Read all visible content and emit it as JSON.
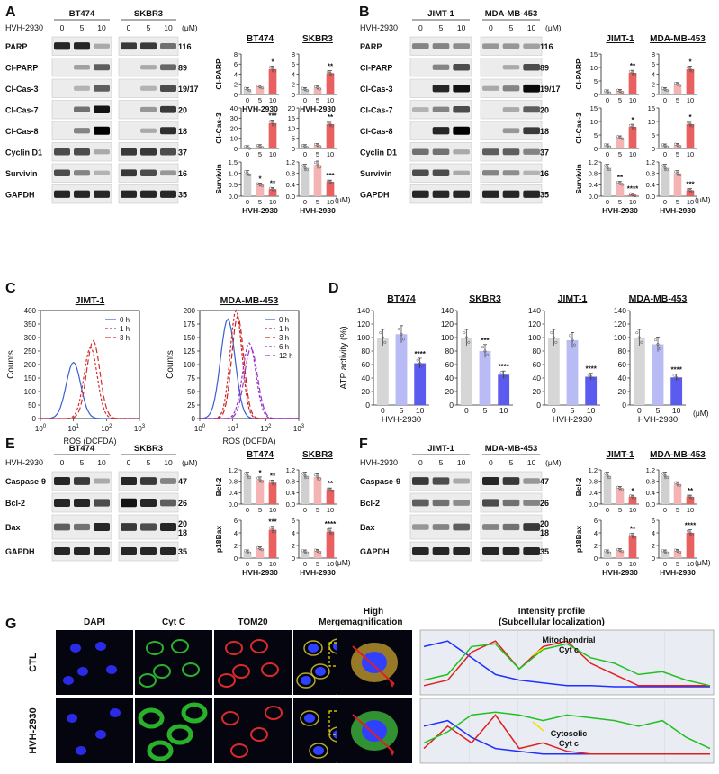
{
  "panel_letters": [
    "A",
    "B",
    "C",
    "D",
    "E",
    "F",
    "G"
  ],
  "treatment": "HVH-2930",
  "unit": "(μM)",
  "doses": [
    "0",
    "5",
    "10"
  ],
  "panelA": {
    "cells": [
      "BT474",
      "SKBR3"
    ],
    "proteins": [
      "PARP",
      "Cl-PARP",
      "Cl-Cas-3",
      "Cl-Cas-7",
      "Cl-Cas-8",
      "Cyclin D1",
      "Survivin",
      "GAPDH"
    ],
    "kda": [
      "116",
      "89",
      "19/17",
      "20",
      "18",
      "37",
      "16",
      "35"
    ],
    "blots": [
      {
        "cell": "BT474",
        "bands": [
          [
            0.8,
            0.8,
            0.1
          ],
          [
            0,
            0.15,
            0.5
          ],
          [
            0,
            0.05,
            0.5
          ],
          [
            0,
            0.4,
            0.9
          ],
          [
            0,
            0.3,
            1.0
          ],
          [
            0.6,
            0.6,
            0.1
          ],
          [
            0.6,
            0.3,
            0.05
          ],
          [
            0.8,
            0.8,
            0.8
          ]
        ]
      },
      {
        "cell": "SKBR3",
        "bands": [
          [
            0.7,
            0.7,
            0.4
          ],
          [
            0,
            0.1,
            0.45
          ],
          [
            0,
            0.05,
            0.6
          ],
          [
            0,
            0.2,
            0.7
          ],
          [
            0,
            0.1,
            0.75
          ],
          [
            0.7,
            0.7,
            0.6
          ],
          [
            0.7,
            0.6,
            0.2
          ],
          [
            0.8,
            0.8,
            0.8
          ]
        ]
      }
    ]
  },
  "panelB": {
    "cells": [
      "JIMT-1",
      "MDA-MB-453"
    ],
    "proteins": [
      "PARP",
      "Cl-PARP",
      "Cl-Cas-3",
      "Cl-Cas-7",
      "Cl-Cas-8",
      "Cyclin D1",
      "Survivin",
      "GAPDH"
    ],
    "kda": [
      "116",
      "89",
      "19/17",
      "20",
      "18",
      "37",
      "16",
      "35"
    ],
    "blots": [
      {
        "cell": "JIMT-1",
        "bands": [
          [
            0.3,
            0.3,
            0.25
          ],
          [
            0,
            0.3,
            0.6
          ],
          [
            0,
            0.8,
            0.9
          ],
          [
            0.05,
            0.3,
            0.6
          ],
          [
            0,
            0.8,
            1.0
          ],
          [
            0.4,
            0.4,
            0.1
          ],
          [
            0.6,
            0.6,
            0.1
          ],
          [
            0.8,
            0.8,
            0.8
          ]
        ]
      },
      {
        "cell": "MDA-MB-453",
        "bands": [
          [
            0.2,
            0.2,
            0.15
          ],
          [
            0,
            0.1,
            0.6
          ],
          [
            0.1,
            0.3,
            0.95
          ],
          [
            0,
            0.1,
            0.5
          ],
          [
            0,
            0.2,
            0.7
          ],
          [
            0.5,
            0.5,
            0.3
          ],
          [
            0.3,
            0.25,
            0.05
          ],
          [
            0.8,
            0.8,
            0.8
          ]
        ]
      }
    ]
  },
  "panelC": {
    "xlabel": "ROS (DCFDA)",
    "ylabel": "Counts",
    "plots": [
      {
        "title": "JIMT-1",
        "ymax": 400,
        "yticks": [
          "0",
          "50",
          "100",
          "150",
          "200",
          "250",
          "300",
          "350",
          "400"
        ],
        "legend": [
          "0 h",
          "1 h",
          "3 h"
        ]
      },
      {
        "title": "MDA-MB-453",
        "ymax": 200,
        "yticks": [
          "0",
          "25",
          "50",
          "75",
          "100",
          "125",
          "150",
          "175",
          "200"
        ],
        "legend": [
          "0 h",
          "1 h",
          "3 h",
          "6 h",
          "12 h"
        ]
      }
    ],
    "xticks": [
      "10^0",
      "10^1",
      "10^2",
      "10^3"
    ]
  },
  "panelE": {
    "cells": [
      "BT474",
      "SKBR3"
    ],
    "proteins": [
      "Caspase-9",
      "Bcl-2",
      "Bax",
      "GAPDH"
    ],
    "kda": [
      "47",
      "26",
      "20",
      "18",
      "35"
    ],
    "blots": [
      {
        "cell": "BT474",
        "bands": [
          [
            0.8,
            0.7,
            0.1
          ],
          [
            0.8,
            0.8,
            0.6
          ],
          [
            0.5,
            0.4,
            0.8
          ],
          [
            0.8,
            0.8,
            0.8
          ]
        ]
      },
      {
        "cell": "SKBR3",
        "bands": [
          [
            0.8,
            0.7,
            0.3
          ],
          [
            0.9,
            0.8,
            0.5
          ],
          [
            0.7,
            0.6,
            0.8
          ],
          [
            0.8,
            0.8,
            0.8
          ]
        ]
      }
    ]
  },
  "panelF": {
    "cells": [
      "JIMT-1",
      "MDA-MB-453"
    ],
    "proteins": [
      "Caspase-9",
      "Bcl-2",
      "Bax",
      "GAPDH"
    ],
    "kda": [
      "47",
      "26",
      "20",
      "18",
      "35"
    ],
    "blots": [
      {
        "cell": "JIMT-1",
        "bands": [
          [
            0.7,
            0.6,
            0.1
          ],
          [
            0.5,
            0.4,
            0.25
          ],
          [
            0.2,
            0.3,
            0.5
          ],
          [
            0.8,
            0.8,
            0.8
          ]
        ]
      },
      {
        "cell": "MDA-MB-453",
        "bands": [
          [
            0.8,
            0.7,
            0.2
          ],
          [
            0.6,
            0.4,
            0.3
          ],
          [
            0.3,
            0.4,
            0.7
          ],
          [
            0.8,
            0.8,
            0.8
          ]
        ]
      }
    ]
  },
  "panelG": {
    "columns": [
      "DAPI",
      "Cyt C",
      "TOM20",
      "Merge",
      "High\nmagnification",
      "Intensity profile\n(Subcellular localization)"
    ],
    "rows": [
      "CTL",
      "HVH-2930"
    ],
    "annotations": [
      "Mitochondrial\nCyt c",
      "Cytosolic\nCyt c"
    ]
  },
  "chart_data": [
    {
      "type": "bar",
      "panel": "A",
      "title": "BT474",
      "ylabel": "Cl-PARP",
      "categories": [
        "0",
        "5",
        "10"
      ],
      "values": [
        1,
        1.5,
        5
      ],
      "ylim": [
        0,
        8
      ],
      "yticks": [
        "0",
        "2",
        "4",
        "6",
        "8"
      ],
      "stars": [
        "",
        "",
        "*"
      ],
      "xlabel": "HVH-2930"
    },
    {
      "type": "bar",
      "panel": "A",
      "title": "SKBR3",
      "ylabel": "",
      "categories": [
        "0",
        "5",
        "10"
      ],
      "values": [
        1,
        1.3,
        4.2
      ],
      "ylim": [
        0,
        8
      ],
      "yticks": [
        "0",
        "2",
        "4",
        "6",
        "8"
      ],
      "stars": [
        "",
        "",
        "**"
      ],
      "xlabel": "HVH-2930"
    },
    {
      "type": "bar",
      "panel": "A",
      "title": "",
      "ylabel": "Cl-Cas-3",
      "categories": [
        "0",
        "5",
        "10"
      ],
      "values": [
        1,
        2,
        25
      ],
      "ylim": [
        0,
        40
      ],
      "yticks": [
        "0",
        "10",
        "20",
        "30",
        "40"
      ],
      "stars": [
        "",
        "",
        "***"
      ],
      "xlabel": ""
    },
    {
      "type": "bar",
      "panel": "A",
      "title": "",
      "ylabel": "",
      "categories": [
        "0",
        "5",
        "10"
      ],
      "values": [
        1,
        1.5,
        12
      ],
      "ylim": [
        0,
        20
      ],
      "yticks": [
        "0",
        "5",
        "10",
        "15",
        "20"
      ],
      "stars": [
        "",
        "",
        "**"
      ],
      "xlabel": ""
    },
    {
      "type": "bar",
      "panel": "A",
      "title": "",
      "ylabel": "Survivin",
      "categories": [
        "0",
        "5",
        "10"
      ],
      "values": [
        1,
        0.5,
        0.3
      ],
      "ylim": [
        0,
        1.5
      ],
      "yticks": [
        "0.0",
        "0.5",
        "1.0",
        "1.5"
      ],
      "stars": [
        "",
        "*",
        "**"
      ],
      "xlabel": "HVH-2930"
    },
    {
      "type": "bar",
      "panel": "A",
      "title": "",
      "ylabel": "",
      "categories": [
        "0",
        "5",
        "10"
      ],
      "values": [
        1,
        1.1,
        0.5
      ],
      "ylim": [
        0,
        1.2
      ],
      "yticks": [
        "0.0",
        "0.4",
        "0.8",
        "1.2"
      ],
      "stars": [
        "",
        "",
        "***"
      ],
      "xlabel": "HVH-2930"
    },
    {
      "type": "bar",
      "panel": "B",
      "title": "JIMT-1",
      "ylabel": "Cl-PARP",
      "categories": [
        "0",
        "5",
        "10"
      ],
      "values": [
        1,
        1.2,
        8
      ],
      "ylim": [
        0,
        15
      ],
      "yticks": [
        "0",
        "5",
        "10",
        "15"
      ],
      "stars": [
        "",
        "",
        "**"
      ],
      "xlabel": ""
    },
    {
      "type": "bar",
      "panel": "B",
      "title": "MDA-MB-453",
      "ylabel": "",
      "categories": [
        "0",
        "5",
        "10"
      ],
      "values": [
        1,
        2,
        5
      ],
      "ylim": [
        0,
        8
      ],
      "yticks": [
        "0",
        "2",
        "4",
        "6",
        "8"
      ],
      "stars": [
        "",
        "",
        "*"
      ],
      "xlabel": ""
    },
    {
      "type": "bar",
      "panel": "B",
      "title": "",
      "ylabel": "Cl-Cas-3",
      "categories": [
        "0",
        "5",
        "10"
      ],
      "values": [
        1,
        4,
        8
      ],
      "ylim": [
        0,
        15
      ],
      "yticks": [
        "0",
        "5",
        "10",
        "15"
      ],
      "stars": [
        "",
        "",
        "*"
      ],
      "xlabel": ""
    },
    {
      "type": "bar",
      "panel": "B",
      "title": "",
      "ylabel": "",
      "categories": [
        "0",
        "5",
        "10"
      ],
      "values": [
        1,
        1.2,
        9
      ],
      "ylim": [
        0,
        15
      ],
      "yticks": [
        "0",
        "5",
        "10",
        "15"
      ],
      "stars": [
        "",
        "",
        "*"
      ],
      "xlabel": ""
    },
    {
      "type": "bar",
      "panel": "B",
      "title": "",
      "ylabel": "Survivin",
      "categories": [
        "0",
        "5",
        "10"
      ],
      "values": [
        1,
        0.45,
        0.05
      ],
      "ylim": [
        0,
        1.2
      ],
      "yticks": [
        "0.0",
        "0.4",
        "0.8",
        "1.2"
      ],
      "stars": [
        "",
        "**",
        "****"
      ],
      "xlabel": "HVH-2930"
    },
    {
      "type": "bar",
      "panel": "B",
      "title": "",
      "ylabel": "",
      "categories": [
        "0",
        "5",
        "10"
      ],
      "values": [
        1,
        0.8,
        0.2
      ],
      "ylim": [
        0,
        1.2
      ],
      "yticks": [
        "0.0",
        "0.4",
        "0.8",
        "1.2"
      ],
      "stars": [
        "",
        "",
        "***"
      ],
      "xlabel": "HVH-2930"
    },
    {
      "type": "bar",
      "panel": "D",
      "title": "BT474",
      "ylabel": "ATP activity (%)",
      "categories": [
        "0",
        "5",
        "10"
      ],
      "values": [
        100,
        105,
        62
      ],
      "ylim": [
        0,
        140
      ],
      "yticks": [
        "0",
        "20",
        "40",
        "60",
        "80",
        "100",
        "120",
        "140"
      ],
      "stars": [
        "",
        "",
        "****"
      ],
      "xlabel": "HVH-2930"
    },
    {
      "type": "bar",
      "panel": "D",
      "title": "SKBR3",
      "ylabel": "",
      "categories": [
        "0",
        "5",
        "10"
      ],
      "values": [
        100,
        80,
        45
      ],
      "ylim": [
        0,
        140
      ],
      "yticks": [
        "0",
        "20",
        "40",
        "60",
        "80",
        "100",
        "120",
        "140"
      ],
      "stars": [
        "",
        "***",
        "****"
      ],
      "xlabel": ""
    },
    {
      "type": "bar",
      "panel": "D",
      "title": "JIMT-1",
      "ylabel": "",
      "categories": [
        "0",
        "5",
        "10"
      ],
      "values": [
        100,
        96,
        42
      ],
      "ylim": [
        0,
        140
      ],
      "yticks": [
        "0",
        "20",
        "40",
        "60",
        "80",
        "100",
        "120",
        "140"
      ],
      "stars": [
        "",
        "",
        "****"
      ],
      "xlabel": "HVH-2930"
    },
    {
      "type": "bar",
      "panel": "D",
      "title": "MDA-MB-453",
      "ylabel": "",
      "categories": [
        "0",
        "5",
        "10"
      ],
      "values": [
        100,
        90,
        41
      ],
      "ylim": [
        0,
        140
      ],
      "yticks": [
        "0",
        "20",
        "40",
        "60",
        "80",
        "100",
        "120",
        "140"
      ],
      "stars": [
        "",
        "",
        "****"
      ],
      "xlabel": "HVH-2930"
    },
    {
      "type": "bar",
      "panel": "E",
      "title": "BT474",
      "ylabel": "Bcl-2",
      "categories": [
        "0",
        "5",
        "10"
      ],
      "values": [
        1,
        0.85,
        0.75
      ],
      "ylim": [
        0,
        1.2
      ],
      "yticks": [
        "0.0",
        "0.4",
        "0.8",
        "1.2"
      ],
      "stars": [
        "",
        "*",
        "**"
      ],
      "xlabel": ""
    },
    {
      "type": "bar",
      "panel": "E",
      "title": "SKBR3",
      "ylabel": "",
      "categories": [
        "0",
        "5",
        "10"
      ],
      "values": [
        1,
        0.95,
        0.5
      ],
      "ylim": [
        0,
        1.2
      ],
      "yticks": [
        "0.0",
        "0.4",
        "0.8",
        "1.2"
      ],
      "stars": [
        "",
        "",
        "**"
      ],
      "xlabel": ""
    },
    {
      "type": "bar",
      "panel": "E",
      "title": "",
      "ylabel": "p18Bax",
      "categories": [
        "0",
        "5",
        "10"
      ],
      "values": [
        1,
        1.5,
        4.5
      ],
      "ylim": [
        0,
        6
      ],
      "yticks": [
        "0",
        "2",
        "4",
        "6"
      ],
      "stars": [
        "",
        "",
        "***"
      ],
      "xlabel": "HVH-2930"
    },
    {
      "type": "bar",
      "panel": "E",
      "title": "",
      "ylabel": "",
      "categories": [
        "0",
        "5",
        "10"
      ],
      "values": [
        1,
        1.1,
        4.2
      ],
      "ylim": [
        0,
        6
      ],
      "yticks": [
        "0",
        "2",
        "4",
        "6"
      ],
      "stars": [
        "",
        "",
        "****"
      ],
      "xlabel": "HVH-2930"
    },
    {
      "type": "bar",
      "panel": "F",
      "title": "JIMT-1",
      "ylabel": "Bcl-2",
      "categories": [
        "0",
        "5",
        "10"
      ],
      "values": [
        1,
        0.55,
        0.25
      ],
      "ylim": [
        0,
        1.2
      ],
      "yticks": [
        "0.0",
        "0.4",
        "0.8",
        "1.2"
      ],
      "stars": [
        "",
        "",
        "*"
      ],
      "xlabel": ""
    },
    {
      "type": "bar",
      "panel": "F",
      "title": "MDA-MB-453",
      "ylabel": "",
      "categories": [
        "0",
        "5",
        "10"
      ],
      "values": [
        1,
        0.7,
        0.25
      ],
      "ylim": [
        0,
        1.2
      ],
      "yticks": [
        "0.0",
        "0.4",
        "0.8",
        "1.2"
      ],
      "stars": [
        "",
        "",
        "**"
      ],
      "xlabel": ""
    },
    {
      "type": "bar",
      "panel": "F",
      "title": "",
      "ylabel": "p18Bax",
      "categories": [
        "0",
        "5",
        "10"
      ],
      "values": [
        1,
        1.2,
        3.5
      ],
      "ylim": [
        0,
        6
      ],
      "yticks": [
        "0",
        "2",
        "4",
        "6"
      ],
      "stars": [
        "",
        "",
        "**"
      ],
      "xlabel": "HVH-2930"
    },
    {
      "type": "bar",
      "panel": "F",
      "title": "",
      "ylabel": "",
      "categories": [
        "0",
        "5",
        "10"
      ],
      "values": [
        1,
        1.1,
        4
      ],
      "ylim": [
        0,
        6
      ],
      "yticks": [
        "0",
        "2",
        "4",
        "6"
      ],
      "stars": [
        "",
        "",
        "****"
      ],
      "xlabel": "HVH-2930"
    }
  ]
}
